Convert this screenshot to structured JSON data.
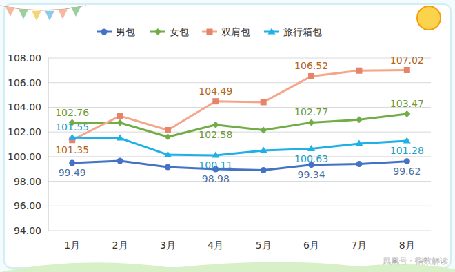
{
  "chart_data": {
    "type": "line",
    "categories": [
      "1月",
      "2月",
      "3月",
      "4月",
      "5月",
      "6月",
      "7月",
      "8月"
    ],
    "series": [
      {
        "name": "男包",
        "color": "#4472c4",
        "marker": "circle",
        "values": [
          99.49,
          99.65,
          99.15,
          98.98,
          98.9,
          99.34,
          99.4,
          99.62
        ],
        "value_labels": [
          "99.49",
          null,
          null,
          "98.98",
          null,
          "99.34",
          null,
          "99.62"
        ]
      },
      {
        "name": "女包",
        "color": "#70ad47",
        "marker": "diamond",
        "values": [
          102.76,
          102.75,
          101.6,
          102.58,
          102.15,
          102.77,
          103.0,
          103.47
        ],
        "value_labels": [
          "102.76",
          null,
          null,
          "102.58",
          null,
          "102.77",
          null,
          "103.47"
        ]
      },
      {
        "name": "双肩包",
        "color": "#f4a58a",
        "marker": "square",
        "values": [
          101.35,
          103.3,
          102.15,
          104.49,
          104.42,
          106.52,
          106.98,
          107.02
        ],
        "value_labels": [
          "101.35",
          null,
          null,
          "104.49",
          null,
          "106.52",
          null,
          "107.02"
        ]
      },
      {
        "name": "旅行箱包",
        "color": "#1fb0e6",
        "marker": "triangle",
        "values": [
          101.55,
          101.5,
          100.15,
          100.11,
          100.5,
          100.63,
          101.05,
          101.28
        ],
        "value_labels": [
          "101.55",
          null,
          null,
          "100.11",
          null,
          "100.63",
          null,
          "101.28"
        ]
      }
    ],
    "ylim": [
      94,
      108
    ],
    "yticks": [
      {
        "value": 94,
        "label": "94.00"
      },
      {
        "value": 96,
        "label": "96.00"
      },
      {
        "value": 98,
        "label": "98.00"
      },
      {
        "value": 100,
        "label": "100.00"
      },
      {
        "value": 102,
        "label": "102.00"
      },
      {
        "value": 104,
        "label": "104.00"
      },
      {
        "value": 106,
        "label": "106.00"
      },
      {
        "value": 108,
        "label": "108.00"
      }
    ],
    "grid": true,
    "legend": "top",
    "data_labels": true,
    "watermark": "凤凰号 · 指数解读"
  }
}
